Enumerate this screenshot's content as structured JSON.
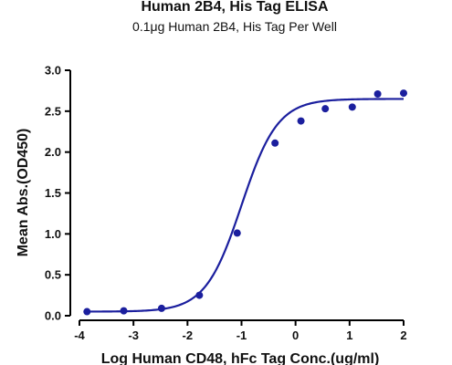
{
  "chart_data": {
    "type": "scatter",
    "title": "Human 2B4, His Tag ELISA",
    "subtitle": "0.1μg Human 2B4, His Tag Per Well",
    "xlabel": "Log Human CD48, hFc Tag Conc.(ug/ml)",
    "ylabel": "Mean Abs.(OD450)",
    "xlim": [
      -4,
      2
    ],
    "ylim": [
      0,
      3
    ],
    "xticks": [
      -4,
      -3,
      -2,
      -1,
      0,
      1,
      2
    ],
    "yticks": [
      0.0,
      0.5,
      1.0,
      1.5,
      2.0,
      2.5,
      3.0
    ],
    "ytick_labels": [
      "0.0",
      "0.5",
      "1.0",
      "1.5",
      "2.0",
      "2.5",
      "3.0"
    ],
    "grid": false,
    "series": [
      {
        "points": [
          {
            "x": -3.86,
            "y": 0.05
          },
          {
            "x": -3.18,
            "y": 0.06
          },
          {
            "x": -2.48,
            "y": 0.09
          },
          {
            "x": -1.78,
            "y": 0.25
          },
          {
            "x": -1.08,
            "y": 1.01
          },
          {
            "x": -0.38,
            "y": 2.11
          },
          {
            "x": 0.1,
            "y": 2.38
          },
          {
            "x": 0.55,
            "y": 2.53
          },
          {
            "x": 1.05,
            "y": 2.55
          },
          {
            "x": 1.52,
            "y": 2.71
          },
          {
            "x": 2.0,
            "y": 2.72
          }
        ],
        "fit": {
          "model": "4PL",
          "bottom": 0.05,
          "top": 2.65,
          "logEC50": -1.0,
          "hill": 1.3
        },
        "color": "#1b1f9e"
      }
    ]
  }
}
